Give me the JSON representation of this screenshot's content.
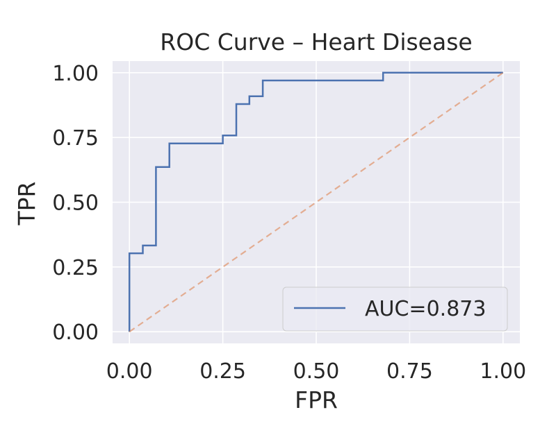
{
  "chart_data": {
    "type": "line",
    "title": "ROC Curve – Heart Disease",
    "xlabel": "FPR",
    "ylabel": "TPR",
    "xlim": [
      -0.045,
      1.045
    ],
    "ylim": [
      -0.045,
      1.045
    ],
    "xticks": [
      0.0,
      0.25,
      0.5,
      0.75,
      1.0
    ],
    "yticks": [
      0.0,
      0.25,
      0.5,
      0.75,
      1.0
    ],
    "xtick_labels": [
      "0.00",
      "0.25",
      "0.50",
      "0.75",
      "1.00"
    ],
    "ytick_labels": [
      "0.00",
      "0.25",
      "0.50",
      "0.75",
      "1.00"
    ],
    "grid": true,
    "legend_position": "lower right",
    "series": [
      {
        "name": "AUC=0.873",
        "color": "#4c72b0",
        "style": "solid",
        "step": true,
        "points": [
          [
            0.0,
            0.0
          ],
          [
            0.0,
            0.303
          ],
          [
            0.036,
            0.303
          ],
          [
            0.036,
            0.333
          ],
          [
            0.071,
            0.333
          ],
          [
            0.071,
            0.636
          ],
          [
            0.107,
            0.636
          ],
          [
            0.107,
            0.727
          ],
          [
            0.25,
            0.727
          ],
          [
            0.25,
            0.758
          ],
          [
            0.286,
            0.758
          ],
          [
            0.286,
            0.879
          ],
          [
            0.321,
            0.879
          ],
          [
            0.321,
            0.909
          ],
          [
            0.357,
            0.909
          ],
          [
            0.357,
            0.97
          ],
          [
            0.679,
            0.97
          ],
          [
            0.679,
            1.0
          ],
          [
            1.0,
            1.0
          ]
        ]
      },
      {
        "name": "",
        "color": "#dd8452",
        "style": "dashed",
        "step": false,
        "points": [
          [
            0.0,
            0.0
          ],
          [
            1.0,
            1.0
          ]
        ]
      }
    ]
  }
}
